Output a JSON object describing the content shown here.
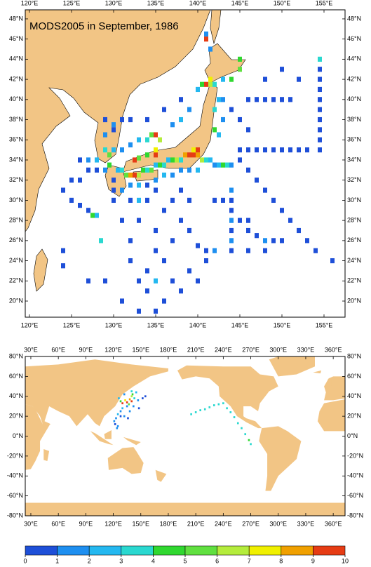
{
  "title": "MODS2005 in September, 1986",
  "regional_map": {
    "lonlim": [
      119.5,
      157.5
    ],
    "latlim": [
      18.4,
      48.9
    ],
    "lon_ticks": [
      {
        "value": 120,
        "label": "120°E"
      },
      {
        "value": 125,
        "label": "125°E"
      },
      {
        "value": 130,
        "label": "130°E"
      },
      {
        "value": 135,
        "label": "135°E"
      },
      {
        "value": 140,
        "label": "140°E"
      },
      {
        "value": 145,
        "label": "145°E"
      },
      {
        "value": 150,
        "label": "150°E"
      },
      {
        "value": 155,
        "label": "155°E"
      }
    ],
    "lat_ticks": [
      {
        "value": 20,
        "label": "20°N"
      },
      {
        "value": 22,
        "label": "22°N"
      },
      {
        "value": 24,
        "label": "24°N"
      },
      {
        "value": 26,
        "label": "26°N"
      },
      {
        "value": 28,
        "label": "28°N"
      },
      {
        "value": 30,
        "label": "30°N"
      },
      {
        "value": 32,
        "label": "32°N"
      },
      {
        "value": 34,
        "label": "34°N"
      },
      {
        "value": 36,
        "label": "36°N"
      },
      {
        "value": 38,
        "label": "38°N"
      },
      {
        "value": 40,
        "label": "40°N"
      },
      {
        "value": 42,
        "label": "42°N"
      },
      {
        "value": 44,
        "label": "44°N"
      },
      {
        "value": 46,
        "label": "46°N"
      },
      {
        "value": 48,
        "label": "48°N"
      }
    ],
    "cells": [
      [
        131,
        33,
        3.5
      ],
      [
        131.5,
        32.5,
        5.5
      ],
      [
        132,
        32.5,
        8.5
      ],
      [
        132.5,
        32.5,
        9.5
      ],
      [
        133,
        32.5,
        6.5
      ],
      [
        133.5,
        33,
        4.5
      ],
      [
        134,
        33,
        3.5
      ],
      [
        134.5,
        33,
        5.5
      ],
      [
        135,
        33.5,
        2.5
      ],
      [
        135.5,
        33.5,
        4.5
      ],
      [
        136,
        33.5,
        3.5
      ],
      [
        136.5,
        34,
        2.5
      ],
      [
        137,
        34,
        4.5
      ],
      [
        137.5,
        34,
        6.5
      ],
      [
        138,
        34,
        3.5
      ],
      [
        138.5,
        34.5,
        8.5
      ],
      [
        139,
        34.5,
        9.5
      ],
      [
        139.5,
        34.5,
        9.5
      ],
      [
        140,
        34.5,
        8.5
      ],
      [
        140.5,
        34,
        6.5
      ],
      [
        140,
        35,
        9.5
      ],
      [
        139.5,
        35,
        7.5
      ],
      [
        141,
        34,
        3.5
      ],
      [
        141.5,
        34,
        2.5
      ],
      [
        142,
        33.5,
        1.5
      ],
      [
        142.5,
        33.5,
        2.5
      ],
      [
        143,
        33.5,
        4.5
      ],
      [
        143.5,
        33.5,
        3.5
      ],
      [
        144,
        33.5,
        1.5
      ],
      [
        140,
        33,
        2.5
      ],
      [
        139,
        33,
        1.5
      ],
      [
        138,
        33,
        1.5
      ],
      [
        137,
        32.5,
        1.5
      ],
      [
        136,
        32.5,
        2.5
      ],
      [
        135,
        32,
        1.5
      ],
      [
        134,
        31.5,
        0.5
      ],
      [
        133,
        31.5,
        2.5
      ],
      [
        132,
        31.5,
        1.5
      ],
      [
        132.5,
        34,
        9.5
      ],
      [
        133,
        34.2,
        5.5
      ],
      [
        134,
        34.5,
        4.5
      ],
      [
        135,
        34.5,
        9.5
      ],
      [
        135,
        35,
        7.5
      ],
      [
        134,
        36,
        3.5
      ],
      [
        134.5,
        36.5,
        5.5
      ],
      [
        135,
        36.5,
        9.5
      ],
      [
        135.5,
        36,
        6.5
      ],
      [
        133,
        36,
        2.5
      ],
      [
        132,
        35.5,
        1.5
      ],
      [
        131,
        35,
        1.5
      ],
      [
        130,
        35,
        2.5
      ],
      [
        129.5,
        34.5,
        5.5
      ],
      [
        129,
        35,
        3.5
      ],
      [
        128,
        34,
        2.5
      ],
      [
        127,
        34,
        1.5
      ],
      [
        126,
        34,
        0.5
      ],
      [
        137,
        37.5,
        1.5
      ],
      [
        138,
        38,
        2.5
      ],
      [
        139,
        39,
        1.5
      ],
      [
        140,
        41,
        2.5
      ],
      [
        138,
        40,
        0.5
      ],
      [
        136,
        39,
        0.5
      ],
      [
        134,
        38,
        0.5
      ],
      [
        132,
        38,
        0.5
      ],
      [
        130,
        37,
        0.5
      ],
      [
        129,
        36.5,
        1.5
      ],
      [
        140.5,
        41.5,
        4.5
      ],
      [
        141,
        41.5,
        9.5
      ],
      [
        141.5,
        41.5,
        6.5
      ],
      [
        142,
        41.5,
        3.5
      ],
      [
        141.5,
        42,
        7.5
      ],
      [
        143,
        42,
        2.5
      ],
      [
        144,
        42,
        4.5
      ],
      [
        145,
        43,
        5.5
      ],
      [
        145,
        44,
        4.5
      ],
      [
        141.5,
        45,
        1.5
      ],
      [
        141,
        46,
        9.5
      ],
      [
        141,
        46.5,
        1.5
      ],
      [
        142,
        37,
        4.5
      ],
      [
        142.5,
        36.5,
        2.5
      ],
      [
        143,
        38,
        1.5
      ],
      [
        142,
        39,
        3.5
      ],
      [
        142.5,
        40,
        2.5
      ],
      [
        143,
        40,
        1.5
      ],
      [
        144,
        39,
        0.5
      ],
      [
        145,
        38,
        0.5
      ],
      [
        146,
        37,
        0.5
      ],
      [
        146,
        40,
        0.5
      ],
      [
        147,
        40,
        0.5
      ],
      [
        148,
        40,
        0.5
      ],
      [
        149,
        40,
        0.5
      ],
      [
        150,
        40,
        0.5
      ],
      [
        151,
        40,
        0.5
      ],
      [
        148,
        42,
        0.5
      ],
      [
        150,
        43,
        0.5
      ],
      [
        152,
        42,
        0.5
      ],
      [
        154.5,
        44,
        3.5
      ],
      [
        154.5,
        43,
        0.5
      ],
      [
        154.5,
        42,
        0.5
      ],
      [
        154.5,
        41,
        0.5
      ],
      [
        154.5,
        40,
        0.5
      ],
      [
        154.5,
        39,
        0.5
      ],
      [
        154.5,
        38,
        0.5
      ],
      [
        154.5,
        37,
        0.5
      ],
      [
        154.5,
        36,
        0.5
      ],
      [
        154.5,
        35,
        0.5
      ],
      [
        145,
        35,
        0.5
      ],
      [
        146,
        35,
        0.5
      ],
      [
        147,
        35,
        0.5
      ],
      [
        148,
        35,
        0.5
      ],
      [
        149,
        35,
        0.5
      ],
      [
        150,
        35,
        0.5
      ],
      [
        151,
        35,
        0.5
      ],
      [
        152,
        35,
        0.5
      ],
      [
        153,
        35,
        0.5
      ],
      [
        145,
        34,
        0.5
      ],
      [
        146,
        33,
        0.5
      ],
      [
        147,
        32,
        0.5
      ],
      [
        148,
        31,
        0.5
      ],
      [
        149,
        30,
        0.5
      ],
      [
        150,
        29,
        0.5
      ],
      [
        151,
        28,
        0.5
      ],
      [
        152,
        27,
        0.5
      ],
      [
        153,
        26,
        0.5
      ],
      [
        154,
        25,
        0.5
      ],
      [
        156,
        24,
        0.5
      ],
      [
        144,
        31,
        1.5
      ],
      [
        144,
        30,
        0.5
      ],
      [
        144,
        29,
        0.5
      ],
      [
        144,
        28,
        1.5
      ],
      [
        144,
        27,
        0.5
      ],
      [
        144,
        26,
        1.5
      ],
      [
        144,
        25,
        0.5
      ],
      [
        145,
        28,
        0.5
      ],
      [
        146,
        28,
        0.5
      ],
      [
        146,
        27,
        0.5
      ],
      [
        147,
        26.5,
        0.5
      ],
      [
        148,
        26,
        1.5
      ],
      [
        149,
        26,
        0.5
      ],
      [
        150,
        26,
        0.5
      ],
      [
        148,
        25,
        0.5
      ],
      [
        146,
        25,
        0.5
      ],
      [
        142,
        25,
        1.5
      ],
      [
        141,
        25,
        0.5
      ],
      [
        140,
        25.5,
        0.5
      ],
      [
        143,
        30,
        0.5
      ],
      [
        142,
        30,
        0.5
      ],
      [
        126,
        29.5,
        0.5
      ],
      [
        127,
        29,
        0.5
      ],
      [
        127.5,
        28.5,
        4.5
      ],
      [
        128,
        28.5,
        2.5
      ],
      [
        128.5,
        26,
        3.5
      ],
      [
        124,
        25,
        0.5
      ],
      [
        124,
        23.5,
        0.5
      ],
      [
        127,
        22,
        0.5
      ],
      [
        129,
        22,
        0.5
      ],
      [
        130,
        30,
        0.5
      ],
      [
        131,
        28,
        0.5
      ],
      [
        132,
        26,
        0.5
      ],
      [
        132,
        24,
        0.5
      ],
      [
        133,
        22,
        0.5
      ],
      [
        134,
        21,
        0.5
      ],
      [
        134,
        23,
        0.5
      ],
      [
        135,
        25,
        0.5
      ],
      [
        135,
        22,
        2.5
      ],
      [
        136,
        20,
        0.5
      ],
      [
        136,
        24,
        0.5
      ],
      [
        137,
        22,
        0.5
      ],
      [
        137,
        26,
        0.5
      ],
      [
        138,
        21,
        0.5
      ],
      [
        138,
        28,
        0.5
      ],
      [
        139,
        23,
        0.5
      ],
      [
        139,
        27,
        0.5
      ],
      [
        135,
        27,
        0.5
      ],
      [
        133,
        28,
        0.5
      ],
      [
        132,
        30,
        0.5
      ],
      [
        131,
        20,
        0.5
      ],
      [
        133,
        19,
        0.5
      ],
      [
        135,
        19,
        0.5
      ],
      [
        137,
        30,
        0.5
      ],
      [
        136,
        29,
        0.5
      ],
      [
        134,
        30,
        0.5
      ],
      [
        140,
        22,
        0.5
      ],
      [
        141,
        24,
        0.5
      ],
      [
        138,
        31,
        0.5
      ],
      [
        139,
        30,
        0.5
      ],
      [
        135,
        31,
        0.5
      ],
      [
        133,
        30,
        2.5
      ],
      [
        130,
        37.5,
        1.5
      ],
      [
        129,
        38,
        0.5
      ],
      [
        131,
        38,
        0.5
      ],
      [
        130.5,
        33,
        2.5
      ],
      [
        129,
        33,
        1.5
      ],
      [
        129.5,
        33.5,
        4.5
      ],
      [
        128,
        33,
        0.5
      ],
      [
        127,
        33,
        0.5
      ],
      [
        126,
        32,
        0.5
      ],
      [
        125,
        32,
        0.5
      ],
      [
        124,
        31,
        0.5
      ],
      [
        125,
        30,
        0.5
      ],
      [
        130,
        32,
        0.5
      ],
      [
        130,
        31,
        0.5
      ],
      [
        131,
        31,
        1.5
      ]
    ]
  },
  "global_map": {
    "lonlim": [
      23.9,
      372.9
    ],
    "latlim": [
      -80,
      80
    ],
    "lon_ticks": [
      {
        "value": 30,
        "label": "30°E"
      },
      {
        "value": 60,
        "label": "60°E"
      },
      {
        "value": 90,
        "label": "90°E"
      },
      {
        "value": 120,
        "label": "120°E"
      },
      {
        "value": 150,
        "label": "150°E"
      },
      {
        "value": 180,
        "label": "180°E"
      },
      {
        "value": 210,
        "label": "210°E"
      },
      {
        "value": 240,
        "label": "240°E"
      },
      {
        "value": 270,
        "label": "270°E"
      },
      {
        "value": 300,
        "label": "300°E"
      },
      {
        "value": 330,
        "label": "330°E"
      },
      {
        "value": 360,
        "label": "360°E"
      }
    ],
    "lat_ticks": [
      {
        "value": -80,
        "label": "-80°N"
      },
      {
        "value": -60,
        "label": "-60°N"
      },
      {
        "value": -40,
        "label": "-40°N"
      },
      {
        "value": -20,
        "label": "-20°N"
      },
      {
        "value": 0,
        "label": "0°N"
      },
      {
        "value": 20,
        "label": "20°N"
      },
      {
        "value": 40,
        "label": "40°N"
      },
      {
        "value": 60,
        "label": "60°N"
      },
      {
        "value": 80,
        "label": "80°N"
      }
    ],
    "cells": [
      [
        130,
        33,
        9.5
      ],
      [
        135,
        34,
        9.5
      ],
      [
        140,
        35,
        9.5
      ],
      [
        138,
        37,
        8.5
      ],
      [
        133,
        36,
        7.5
      ],
      [
        140,
        40,
        6.5
      ],
      [
        141,
        42,
        4.5
      ],
      [
        128,
        35,
        4.5
      ],
      [
        137,
        32,
        5.5
      ],
      [
        143,
        38,
        3.5
      ],
      [
        135,
        30,
        1.5
      ],
      [
        130,
        28,
        2.5
      ],
      [
        128,
        25,
        1.5
      ],
      [
        125,
        22,
        2.5
      ],
      [
        123,
        18,
        1.5
      ],
      [
        121,
        15,
        1.5
      ],
      [
        122,
        12,
        0.5
      ],
      [
        125,
        10,
        1.5
      ],
      [
        124,
        8,
        1.5
      ],
      [
        128,
        20,
        0.5
      ],
      [
        132,
        20,
        1.5
      ],
      [
        136,
        18,
        0.5
      ],
      [
        138,
        25,
        1.5
      ],
      [
        142,
        30,
        1.5
      ],
      [
        148,
        28,
        0.5
      ],
      [
        145,
        44,
        2.5
      ],
      [
        140,
        45,
        3.5
      ],
      [
        132,
        42,
        1.5
      ],
      [
        126,
        38,
        2.5
      ],
      [
        147,
        36,
        1.5
      ],
      [
        152,
        38,
        0.5
      ],
      [
        155,
        40,
        0.5
      ],
      [
        205,
        22,
        3.5
      ],
      [
        210,
        24,
        3.5
      ],
      [
        215,
        26,
        3.5
      ],
      [
        220,
        27,
        3.5
      ],
      [
        225,
        29,
        3.5
      ],
      [
        230,
        31,
        3.5
      ],
      [
        235,
        32,
        3.5
      ],
      [
        240,
        33,
        3.5
      ],
      [
        244,
        28,
        3.5
      ],
      [
        248,
        24,
        3.5
      ],
      [
        252,
        19,
        3.5
      ],
      [
        256,
        13,
        3.5
      ],
      [
        260,
        8,
        3.5
      ],
      [
        264,
        2,
        3.5
      ],
      [
        268,
        -4,
        4.5
      ],
      [
        270,
        -8,
        3.5
      ]
    ]
  },
  "colorbar": {
    "levels": [
      0,
      1,
      2,
      3,
      4,
      5,
      6,
      7,
      8,
      9,
      10
    ],
    "colors": [
      "#1e4fd8",
      "#1e8ff0",
      "#24b8f0",
      "#2ad8d0",
      "#30d830",
      "#60e040",
      "#b4ec3c",
      "#f0f000",
      "#f0a000",
      "#e63c14"
    ]
  }
}
